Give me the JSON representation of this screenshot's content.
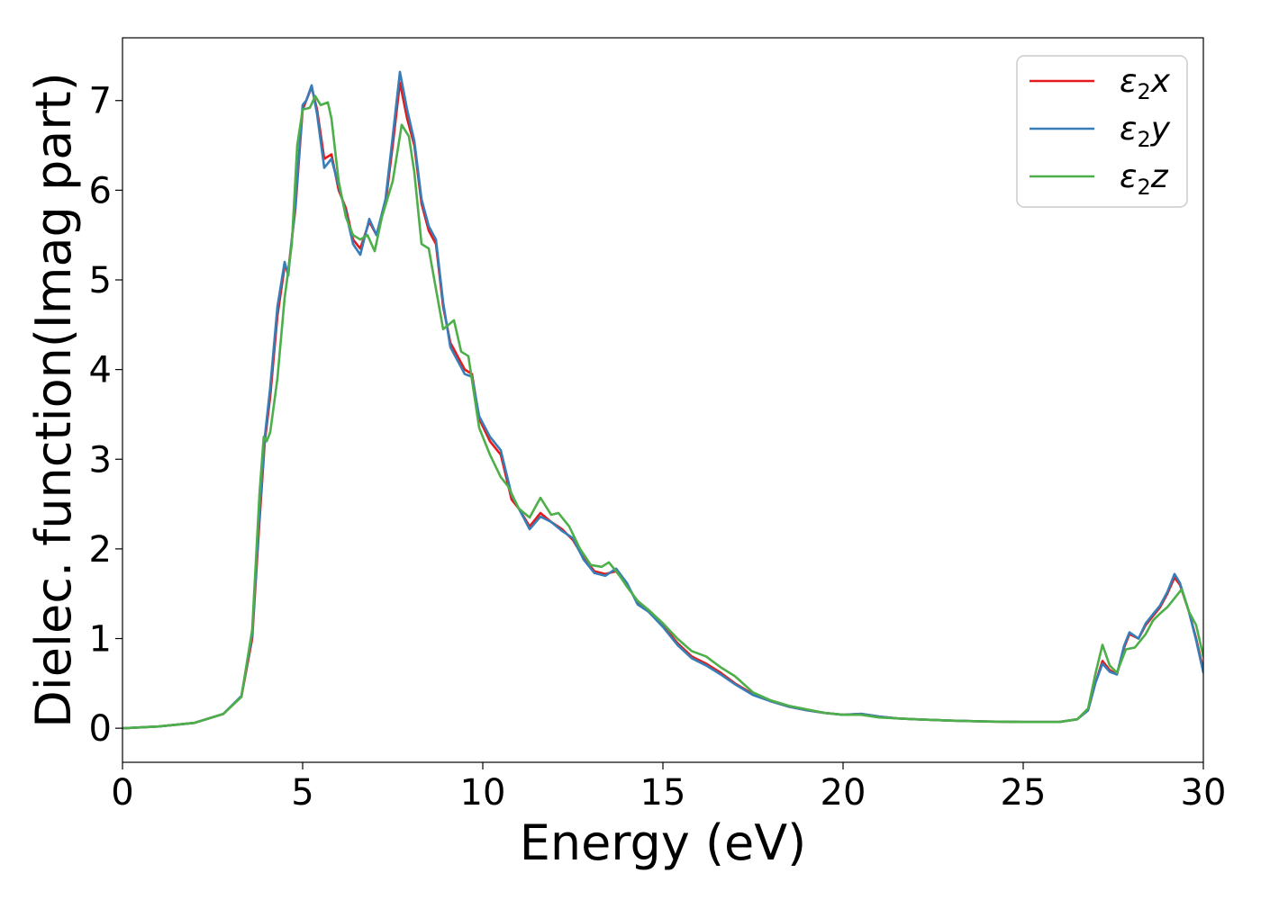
{
  "chart_data": {
    "type": "line",
    "xlabel": "Energy (eV)",
    "ylabel": "Dielec. function(Imag part)",
    "xlim": [
      0,
      30
    ],
    "ylim": [
      -0.38,
      7.7
    ],
    "xticks": [
      0,
      5,
      10,
      15,
      20,
      25,
      30
    ],
    "yticks": [
      0,
      1,
      2,
      3,
      4,
      5,
      6,
      7
    ],
    "grid": false,
    "legend_position": "top-right",
    "series": [
      {
        "name": "ε2x",
        "legend_base": "ε",
        "legend_sub": "2",
        "legend_tail": "x",
        "color": "#e41a1c",
        "points": [
          [
            0,
            0
          ],
          [
            1,
            0.02
          ],
          [
            2,
            0.06
          ],
          [
            2.8,
            0.16
          ],
          [
            3.3,
            0.35
          ],
          [
            3.6,
            1.0
          ],
          [
            3.8,
            2.3
          ],
          [
            3.95,
            3.2
          ],
          [
            4.1,
            3.7
          ],
          [
            4.3,
            4.6
          ],
          [
            4.5,
            5.15
          ],
          [
            4.6,
            5.1
          ],
          [
            4.8,
            5.8
          ],
          [
            5.0,
            6.9
          ],
          [
            5.1,
            7.0
          ],
          [
            5.25,
            7.15
          ],
          [
            5.4,
            6.9
          ],
          [
            5.6,
            6.35
          ],
          [
            5.8,
            6.4
          ],
          [
            6.0,
            6.0
          ],
          [
            6.2,
            5.8
          ],
          [
            6.4,
            5.45
          ],
          [
            6.6,
            5.35
          ],
          [
            6.85,
            5.65
          ],
          [
            7.05,
            5.5
          ],
          [
            7.3,
            5.85
          ],
          [
            7.5,
            6.5
          ],
          [
            7.7,
            7.2
          ],
          [
            7.9,
            6.8
          ],
          [
            8.1,
            6.5
          ],
          [
            8.3,
            5.85
          ],
          [
            8.5,
            5.55
          ],
          [
            8.7,
            5.4
          ],
          [
            8.9,
            4.7
          ],
          [
            9.1,
            4.3
          ],
          [
            9.3,
            4.15
          ],
          [
            9.5,
            4.0
          ],
          [
            9.7,
            3.95
          ],
          [
            9.9,
            3.45
          ],
          [
            10.2,
            3.2
          ],
          [
            10.5,
            3.05
          ],
          [
            10.8,
            2.55
          ],
          [
            11.0,
            2.45
          ],
          [
            11.3,
            2.25
          ],
          [
            11.6,
            2.4
          ],
          [
            11.9,
            2.3
          ],
          [
            12.2,
            2.22
          ],
          [
            12.5,
            2.1
          ],
          [
            12.8,
            1.9
          ],
          [
            13.1,
            1.75
          ],
          [
            13.4,
            1.72
          ],
          [
            13.7,
            1.75
          ],
          [
            14.0,
            1.6
          ],
          [
            14.3,
            1.4
          ],
          [
            14.6,
            1.3
          ],
          [
            15.0,
            1.15
          ],
          [
            15.4,
            0.95
          ],
          [
            15.8,
            0.8
          ],
          [
            16.2,
            0.72
          ],
          [
            16.6,
            0.62
          ],
          [
            17.0,
            0.5
          ],
          [
            17.5,
            0.38
          ],
          [
            18.0,
            0.3
          ],
          [
            18.5,
            0.24
          ],
          [
            19.0,
            0.2
          ],
          [
            19.5,
            0.17
          ],
          [
            20.0,
            0.15
          ],
          [
            20.5,
            0.16
          ],
          [
            21.0,
            0.13
          ],
          [
            21.5,
            0.11
          ],
          [
            22.0,
            0.1
          ],
          [
            23.0,
            0.085
          ],
          [
            24.0,
            0.075
          ],
          [
            25.0,
            0.07
          ],
          [
            26.0,
            0.07
          ],
          [
            26.5,
            0.1
          ],
          [
            26.8,
            0.2
          ],
          [
            27.0,
            0.5
          ],
          [
            27.2,
            0.75
          ],
          [
            27.4,
            0.65
          ],
          [
            27.6,
            0.6
          ],
          [
            27.8,
            0.9
          ],
          [
            27.95,
            1.05
          ],
          [
            28.2,
            1.0
          ],
          [
            28.4,
            1.15
          ],
          [
            28.6,
            1.25
          ],
          [
            28.8,
            1.35
          ],
          [
            29.0,
            1.5
          ],
          [
            29.2,
            1.68
          ],
          [
            29.35,
            1.6
          ],
          [
            29.6,
            1.3
          ],
          [
            29.8,
            1.0
          ],
          [
            30.0,
            0.65
          ]
        ]
      },
      {
        "name": "ε2y",
        "legend_base": "ε",
        "legend_sub": "2",
        "legend_tail": "y",
        "color": "#377eb8",
        "points": [
          [
            0,
            0
          ],
          [
            1,
            0.02
          ],
          [
            2,
            0.06
          ],
          [
            2.8,
            0.16
          ],
          [
            3.3,
            0.36
          ],
          [
            3.6,
            1.05
          ],
          [
            3.8,
            2.4
          ],
          [
            3.95,
            3.25
          ],
          [
            4.1,
            3.8
          ],
          [
            4.3,
            4.7
          ],
          [
            4.5,
            5.2
          ],
          [
            4.6,
            5.05
          ],
          [
            4.8,
            5.85
          ],
          [
            5.0,
            6.95
          ],
          [
            5.1,
            7.0
          ],
          [
            5.25,
            7.17
          ],
          [
            5.4,
            6.85
          ],
          [
            5.6,
            6.25
          ],
          [
            5.8,
            6.35
          ],
          [
            6.0,
            6.05
          ],
          [
            6.2,
            5.75
          ],
          [
            6.4,
            5.4
          ],
          [
            6.6,
            5.28
          ],
          [
            6.85,
            5.68
          ],
          [
            7.05,
            5.5
          ],
          [
            7.3,
            5.9
          ],
          [
            7.5,
            6.6
          ],
          [
            7.7,
            7.32
          ],
          [
            7.9,
            6.9
          ],
          [
            8.1,
            6.55
          ],
          [
            8.3,
            5.9
          ],
          [
            8.5,
            5.6
          ],
          [
            8.7,
            5.45
          ],
          [
            8.9,
            4.75
          ],
          [
            9.1,
            4.25
          ],
          [
            9.3,
            4.1
          ],
          [
            9.5,
            3.95
          ],
          [
            9.7,
            3.92
          ],
          [
            9.9,
            3.48
          ],
          [
            10.2,
            3.25
          ],
          [
            10.5,
            3.1
          ],
          [
            10.8,
            2.6
          ],
          [
            11.0,
            2.45
          ],
          [
            11.3,
            2.22
          ],
          [
            11.6,
            2.36
          ],
          [
            11.9,
            2.3
          ],
          [
            12.2,
            2.2
          ],
          [
            12.5,
            2.12
          ],
          [
            12.8,
            1.88
          ],
          [
            13.1,
            1.73
          ],
          [
            13.4,
            1.7
          ],
          [
            13.7,
            1.78
          ],
          [
            14.0,
            1.62
          ],
          [
            14.3,
            1.38
          ],
          [
            14.6,
            1.3
          ],
          [
            15.0,
            1.13
          ],
          [
            15.4,
            0.93
          ],
          [
            15.8,
            0.78
          ],
          [
            16.2,
            0.7
          ],
          [
            16.6,
            0.6
          ],
          [
            17.0,
            0.49
          ],
          [
            17.5,
            0.37
          ],
          [
            18.0,
            0.3
          ],
          [
            18.5,
            0.24
          ],
          [
            19.0,
            0.2
          ],
          [
            19.5,
            0.17
          ],
          [
            20.0,
            0.15
          ],
          [
            20.5,
            0.16
          ],
          [
            21.0,
            0.13
          ],
          [
            21.5,
            0.11
          ],
          [
            22.0,
            0.1
          ],
          [
            23.0,
            0.085
          ],
          [
            24.0,
            0.075
          ],
          [
            25.0,
            0.07
          ],
          [
            26.0,
            0.07
          ],
          [
            26.5,
            0.1
          ],
          [
            26.8,
            0.2
          ],
          [
            27.0,
            0.5
          ],
          [
            27.2,
            0.72
          ],
          [
            27.4,
            0.63
          ],
          [
            27.6,
            0.6
          ],
          [
            27.8,
            0.92
          ],
          [
            27.95,
            1.07
          ],
          [
            28.2,
            1.0
          ],
          [
            28.4,
            1.17
          ],
          [
            28.6,
            1.27
          ],
          [
            28.8,
            1.37
          ],
          [
            29.0,
            1.52
          ],
          [
            29.2,
            1.72
          ],
          [
            29.35,
            1.62
          ],
          [
            29.6,
            1.3
          ],
          [
            29.8,
            0.98
          ],
          [
            30.0,
            0.62
          ]
        ]
      },
      {
        "name": "ε2z",
        "legend_base": "ε",
        "legend_sub": "2",
        "legend_tail": "z",
        "color": "#4daf4a",
        "points": [
          [
            0,
            0
          ],
          [
            1,
            0.02
          ],
          [
            2,
            0.06
          ],
          [
            2.8,
            0.16
          ],
          [
            3.3,
            0.35
          ],
          [
            3.6,
            1.1
          ],
          [
            3.8,
            2.6
          ],
          [
            3.92,
            3.25
          ],
          [
            4.0,
            3.2
          ],
          [
            4.1,
            3.3
          ],
          [
            4.3,
            3.9
          ],
          [
            4.5,
            4.8
          ],
          [
            4.7,
            5.4
          ],
          [
            4.85,
            6.5
          ],
          [
            5.0,
            6.9
          ],
          [
            5.2,
            6.92
          ],
          [
            5.35,
            7.05
          ],
          [
            5.5,
            6.95
          ],
          [
            5.7,
            6.98
          ],
          [
            5.8,
            6.8
          ],
          [
            6.0,
            6.1
          ],
          [
            6.2,
            5.7
          ],
          [
            6.4,
            5.5
          ],
          [
            6.6,
            5.45
          ],
          [
            6.8,
            5.5
          ],
          [
            7.0,
            5.32
          ],
          [
            7.2,
            5.7
          ],
          [
            7.5,
            6.1
          ],
          [
            7.75,
            6.73
          ],
          [
            7.95,
            6.6
          ],
          [
            8.1,
            6.2
          ],
          [
            8.3,
            5.4
          ],
          [
            8.5,
            5.35
          ],
          [
            8.7,
            4.9
          ],
          [
            8.9,
            4.45
          ],
          [
            9.2,
            4.55
          ],
          [
            9.4,
            4.2
          ],
          [
            9.6,
            4.15
          ],
          [
            9.9,
            3.35
          ],
          [
            10.2,
            3.05
          ],
          [
            10.5,
            2.8
          ],
          [
            10.7,
            2.7
          ],
          [
            11.0,
            2.45
          ],
          [
            11.3,
            2.35
          ],
          [
            11.6,
            2.57
          ],
          [
            11.9,
            2.38
          ],
          [
            12.1,
            2.4
          ],
          [
            12.4,
            2.25
          ],
          [
            12.7,
            2.0
          ],
          [
            13.0,
            1.82
          ],
          [
            13.3,
            1.8
          ],
          [
            13.5,
            1.85
          ],
          [
            13.8,
            1.7
          ],
          [
            14.0,
            1.58
          ],
          [
            14.3,
            1.42
          ],
          [
            14.6,
            1.32
          ],
          [
            15.0,
            1.17
          ],
          [
            15.4,
            1.0
          ],
          [
            15.8,
            0.86
          ],
          [
            16.2,
            0.8
          ],
          [
            16.6,
            0.68
          ],
          [
            17.0,
            0.58
          ],
          [
            17.5,
            0.4
          ],
          [
            18.0,
            0.31
          ],
          [
            18.5,
            0.25
          ],
          [
            19.0,
            0.21
          ],
          [
            19.5,
            0.17
          ],
          [
            20.0,
            0.15
          ],
          [
            20.5,
            0.15
          ],
          [
            21.0,
            0.12
          ],
          [
            21.5,
            0.11
          ],
          [
            22.0,
            0.1
          ],
          [
            23.0,
            0.085
          ],
          [
            24.0,
            0.075
          ],
          [
            25.0,
            0.07
          ],
          [
            26.0,
            0.07
          ],
          [
            26.5,
            0.1
          ],
          [
            26.8,
            0.22
          ],
          [
            27.0,
            0.6
          ],
          [
            27.2,
            0.93
          ],
          [
            27.4,
            0.7
          ],
          [
            27.6,
            0.62
          ],
          [
            27.85,
            0.88
          ],
          [
            28.1,
            0.9
          ],
          [
            28.4,
            1.05
          ],
          [
            28.6,
            1.2
          ],
          [
            28.8,
            1.28
          ],
          [
            29.0,
            1.35
          ],
          [
            29.2,
            1.45
          ],
          [
            29.4,
            1.55
          ],
          [
            29.6,
            1.3
          ],
          [
            29.8,
            1.15
          ],
          [
            30.0,
            0.8
          ]
        ]
      }
    ]
  }
}
